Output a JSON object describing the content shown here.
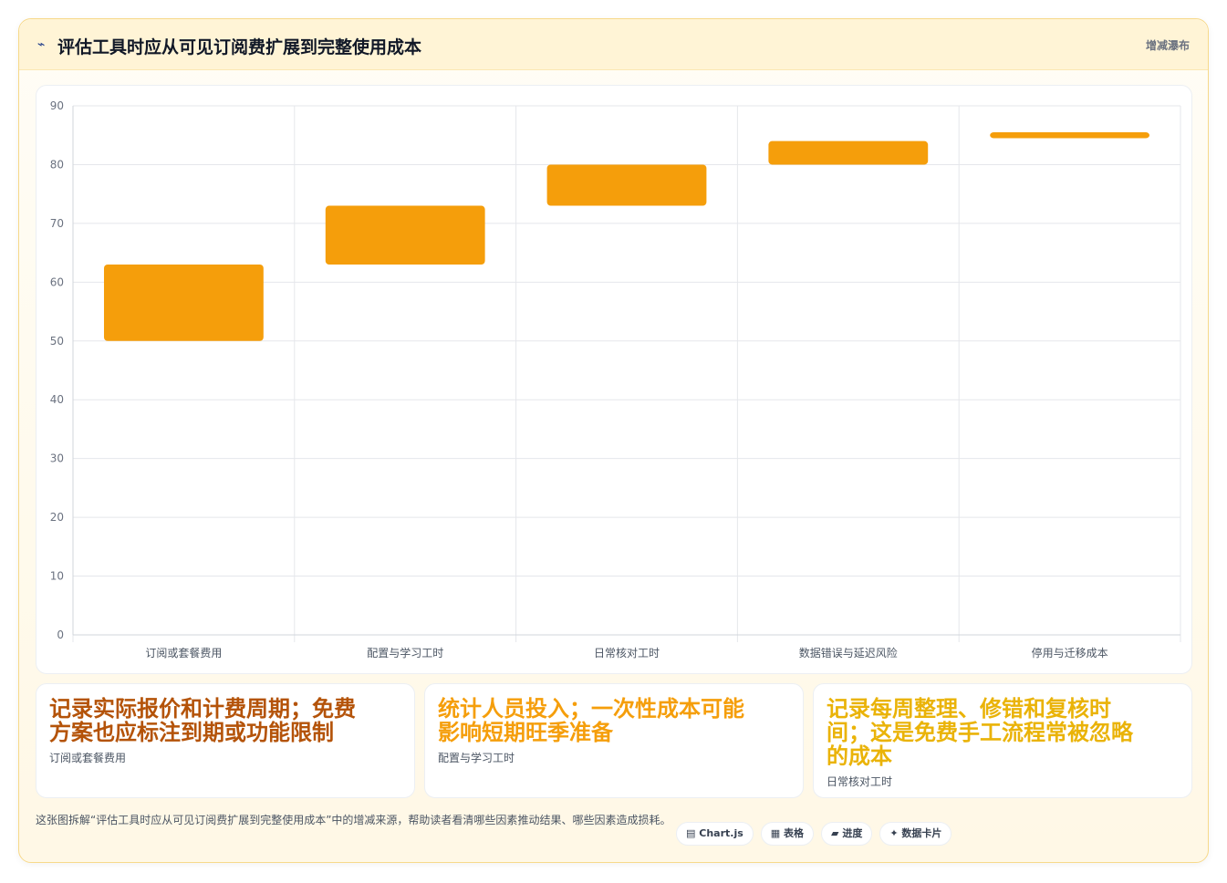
{
  "header": {
    "title_icon": "⌁",
    "title": "评估工具时应从可见订阅费扩展到完整使用成本",
    "badge": "增减瀑布"
  },
  "colors": {
    "bar": "#f59e0b",
    "grid": "#e5e7eb",
    "axis": "#d1d5db"
  },
  "chart_data": {
    "type": "bar",
    "subtype": "floating-waterfall",
    "categories": [
      "订阅或套餐费用",
      "配置与学习工时",
      "日常核对工时",
      "数据错误与延迟风险",
      "停用与迁移成本"
    ],
    "ranges": [
      [
        50,
        63
      ],
      [
        63,
        73
      ],
      [
        73,
        80
      ],
      [
        80,
        84
      ],
      [
        84.5,
        85.5
      ]
    ],
    "ylim": [
      0,
      90
    ],
    "yticks": [
      0,
      10,
      20,
      30,
      40,
      50,
      60,
      70,
      80,
      90
    ],
    "grid": true,
    "legend": "none",
    "title": "",
    "xlabel": "",
    "ylabel": ""
  },
  "notes": [
    {
      "text": "记录实际报价和计费周期；免费\n方案也应标注到期或功能限制",
      "sub": "订阅或套餐费用",
      "color": "#b45309"
    },
    {
      "text": "统计人员投入；一次性成本可能\n影响短期旺季准备",
      "sub": "配置与学习工时",
      "color": "#f59e0b"
    },
    {
      "text": "记录每周整理、修错和复核时\n间；这是免费手工流程常被忽略\n的成本",
      "sub": "日常核对工时",
      "color": "#eab308"
    }
  ],
  "footer": {
    "text": "这张图拆解“评估工具时应从可见订阅费扩展到完整使用成本”中的增减来源，帮助读者看清哪些因素推动结果、哪些因素造成损耗。"
  },
  "chips": [
    {
      "icon": "▤",
      "label": "Chart.js"
    },
    {
      "icon": "▦",
      "label": "表格"
    },
    {
      "icon": "▰",
      "label": "进度"
    },
    {
      "icon": "✦",
      "label": "数据卡片"
    }
  ]
}
